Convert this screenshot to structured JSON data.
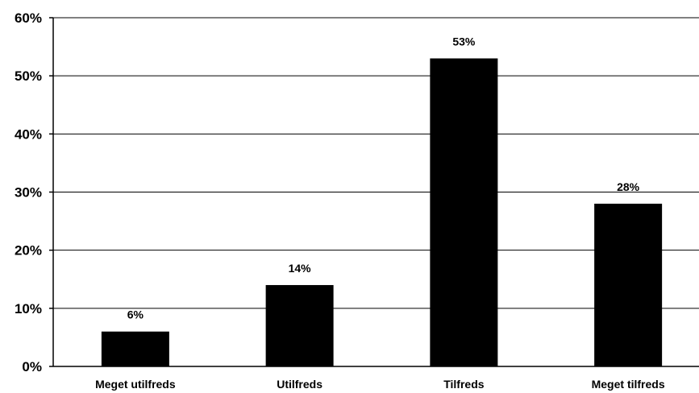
{
  "chart_data": {
    "type": "bar",
    "categories": [
      "Meget utilfreds",
      "Utilfreds",
      "Tilfreds",
      "Meget tilfreds"
    ],
    "values": [
      6,
      14,
      53,
      28
    ],
    "data_labels": [
      "6%",
      "14%",
      "53%",
      "28%"
    ],
    "y_ticks": [
      "0%",
      "10%",
      "20%",
      "30%",
      "40%",
      "50%",
      "60%"
    ],
    "ylim": [
      0,
      60
    ],
    "grid": true,
    "bar_color": "#000000"
  }
}
